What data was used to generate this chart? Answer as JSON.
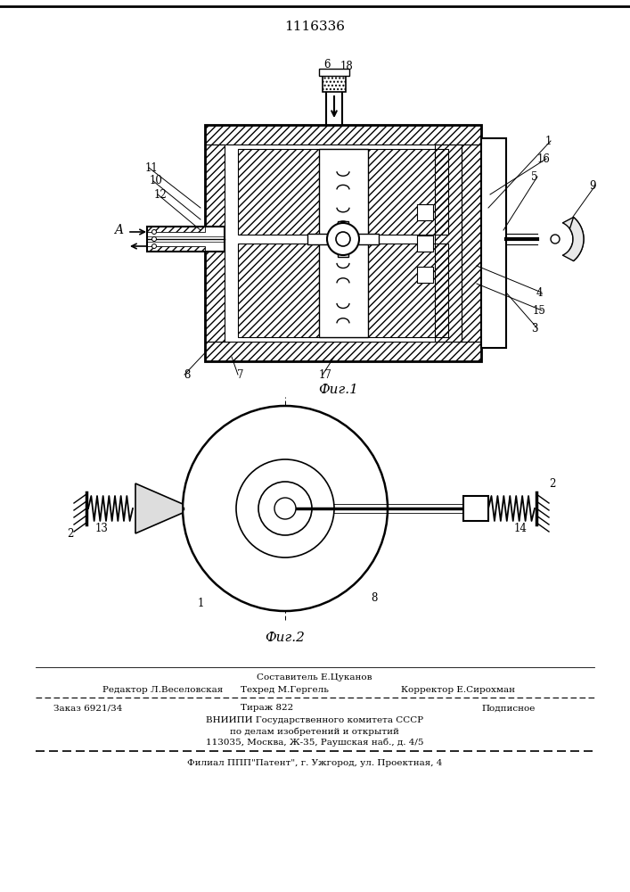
{
  "patent_number": "1116336",
  "background_color": "#ffffff",
  "fig_width": 7.07,
  "fig_height": 10.0,
  "dpi": 100,
  "footer": {
    "sostavitel": "Составитель Е.Цуканов",
    "redaktor": "Редактор Л.Веселовская",
    "tekhred": "Техред М.Гергель",
    "korrektor": "Корректор Е.Сирохман",
    "zakaz": "Заказ 6921/34",
    "tirazh": "Тираж 822",
    "podpisnoe": "Подписное",
    "vniiipi": "ВНИИПИ Государственного комитета СССР",
    "po_delam": "по делам изобретений и открытий",
    "address": "113035, Москва, Ж-35, Раушская наб., д. 4/5",
    "filial": "Филиал ППП\"Патент\", г. Ужгород, ул. Проектная, 4"
  },
  "fig1_caption": "Фиг.1",
  "fig2_caption": "Фиг.2",
  "line_color": "#000000"
}
